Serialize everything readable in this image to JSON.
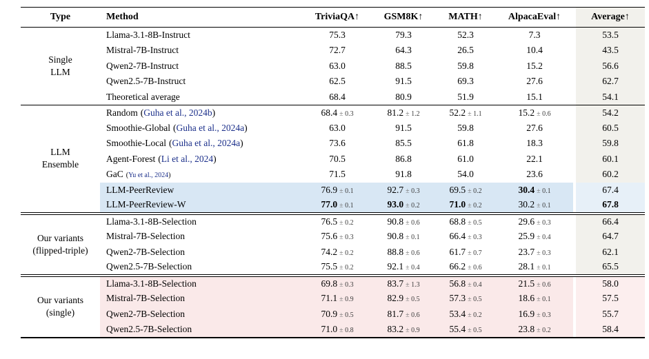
{
  "colors": {
    "citation_blue": "#1b2f8a",
    "avg_col_bg": "#f2f1ec",
    "row_blue": "#d8e7f4",
    "row_blue_avg": "#e7f0f8",
    "row_pink": "#fae9e9",
    "row_pink_avg": "#fceeee",
    "rule_color": "#000000"
  },
  "table": {
    "headers": [
      {
        "label": "Type"
      },
      {
        "label": "Method"
      },
      {
        "label": "TriviaQA↑"
      },
      {
        "label": "GSM8K↑"
      },
      {
        "label": "MATH↑"
      },
      {
        "label": "AlpacaEval↑"
      },
      {
        "label": "Average↑"
      }
    ],
    "groups": [
      {
        "type_lines": [
          "Single",
          "LLM"
        ],
        "separator": "none",
        "rows": [
          {
            "method": {
              "name": "Llama-3.1-8B-Instruct"
            },
            "cells": [
              {
                "v": "75.3"
              },
              {
                "v": "79.3"
              },
              {
                "v": "52.3"
              },
              {
                "v": "7.3"
              }
            ],
            "avg": {
              "v": "53.5"
            }
          },
          {
            "method": {
              "name": "Mistral-7B-Instruct"
            },
            "cells": [
              {
                "v": "72.7"
              },
              {
                "v": "64.3"
              },
              {
                "v": "26.5"
              },
              {
                "v": "10.4"
              }
            ],
            "avg": {
              "v": "43.5"
            }
          },
          {
            "method": {
              "name": "Qwen2-7B-Instruct"
            },
            "cells": [
              {
                "v": "63.0"
              },
              {
                "v": "88.5"
              },
              {
                "v": "59.8"
              },
              {
                "v": "15.2"
              }
            ],
            "avg": {
              "v": "56.6"
            }
          },
          {
            "method": {
              "name": "Qwen2.5-7B-Instruct"
            },
            "cells": [
              {
                "v": "62.5"
              },
              {
                "v": "91.5"
              },
              {
                "v": "69.3"
              },
              {
                "v": "27.6"
              }
            ],
            "avg": {
              "v": "62.7"
            }
          },
          {
            "method": {
              "name": "Theoretical average"
            },
            "cells": [
              {
                "v": "68.4"
              },
              {
                "v": "80.9"
              },
              {
                "v": "51.9"
              },
              {
                "v": "15.1"
              }
            ],
            "avg": {
              "v": "54.1"
            }
          }
        ]
      },
      {
        "type_lines": [
          "LLM",
          "Ensemble"
        ],
        "separator": "single",
        "rows": [
          {
            "method": {
              "name": "Random",
              "cite": "Guha et al., 2024b"
            },
            "cells": [
              {
                "v": "68.4",
                "pm": "0.3"
              },
              {
                "v": "81.2",
                "pm": "1.2"
              },
              {
                "v": "52.2",
                "pm": "1.1"
              },
              {
                "v": "15.2",
                "pm": "0.6"
              }
            ],
            "avg": {
              "v": "54.2"
            }
          },
          {
            "method": {
              "name": "Smoothie-Global",
              "cite": "Guha et al., 2024a"
            },
            "cells": [
              {
                "v": "63.0"
              },
              {
                "v": "91.5"
              },
              {
                "v": "59.8"
              },
              {
                "v": "27.6"
              }
            ],
            "avg": {
              "v": "60.5"
            }
          },
          {
            "method": {
              "name": "Smoothie-Local",
              "cite": "Guha et al., 2024a"
            },
            "cells": [
              {
                "v": "73.6"
              },
              {
                "v": "85.5"
              },
              {
                "v": "61.8"
              },
              {
                "v": "18.3"
              }
            ],
            "avg": {
              "v": "59.8"
            }
          },
          {
            "method": {
              "name": "Agent-Forest",
              "cite": "Li et al., 2024"
            },
            "cells": [
              {
                "v": "70.5"
              },
              {
                "v": "86.8"
              },
              {
                "v": "61.0"
              },
              {
                "v": "22.1"
              }
            ],
            "avg": {
              "v": "60.1"
            }
          },
          {
            "method": {
              "name": "GaC",
              "cite": "Yu et al., 2024",
              "small_cite": true
            },
            "cells": [
              {
                "v": "71.5"
              },
              {
                "v": "91.8"
              },
              {
                "v": "54.0"
              },
              {
                "v": "23.6"
              }
            ],
            "avg": {
              "v": "60.2"
            }
          },
          {
            "method": {
              "name": "LLM-PeerReview"
            },
            "highlight": "blue",
            "cells": [
              {
                "v": "76.9",
                "pm": "0.1"
              },
              {
                "v": "92.7",
                "pm": "0.3"
              },
              {
                "v": "69.5",
                "pm": "0.2"
              },
              {
                "v": "30.4",
                "pm": "0.1",
                "b": true
              }
            ],
            "avg": {
              "v": "67.4"
            }
          },
          {
            "method": {
              "name": "LLM-PeerReview-W"
            },
            "highlight": "blue",
            "cells": [
              {
                "v": "77.0",
                "pm": "0.1",
                "b": true
              },
              {
                "v": "93.0",
                "pm": "0.2",
                "b": true
              },
              {
                "v": "71.0",
                "pm": "0.2",
                "b": true
              },
              {
                "v": "30.2",
                "pm": "0.1"
              }
            ],
            "avg": {
              "v": "67.8",
              "b": true
            }
          }
        ]
      },
      {
        "type_lines": [
          "Our variants",
          "(flipped-triple)"
        ],
        "separator": "double",
        "rows": [
          {
            "method": {
              "name": "Llama-3.1-8B-Selection"
            },
            "cells": [
              {
                "v": "76.5",
                "pm": "0.2"
              },
              {
                "v": "90.8",
                "pm": "0.6"
              },
              {
                "v": "68.8",
                "pm": "0.5"
              },
              {
                "v": "29.6",
                "pm": "0.3"
              }
            ],
            "avg": {
              "v": "66.4"
            }
          },
          {
            "method": {
              "name": "Mistral-7B-Selection"
            },
            "cells": [
              {
                "v": "75.6",
                "pm": "0.3"
              },
              {
                "v": "90.8",
                "pm": "0.1"
              },
              {
                "v": "66.4",
                "pm": "0.3"
              },
              {
                "v": "25.9",
                "pm": "0.4"
              }
            ],
            "avg": {
              "v": "64.7"
            }
          },
          {
            "method": {
              "name": "Qwen2-7B-Selection"
            },
            "cells": [
              {
                "v": "74.2",
                "pm": "0.2"
              },
              {
                "v": "88.8",
                "pm": "0.6"
              },
              {
                "v": "61.7",
                "pm": "0.7"
              },
              {
                "v": "23.7",
                "pm": "0.3"
              }
            ],
            "avg": {
              "v": "62.1"
            }
          },
          {
            "method": {
              "name": "Qwen2.5-7B-Selection"
            },
            "cells": [
              {
                "v": "75.5",
                "pm": "0.2"
              },
              {
                "v": "92.1",
                "pm": "0.4"
              },
              {
                "v": "66.2",
                "pm": "0.6"
              },
              {
                "v": "28.1",
                "pm": "0.1"
              }
            ],
            "avg": {
              "v": "65.5"
            }
          }
        ]
      },
      {
        "type_lines": [
          "Our variants",
          "(single)"
        ],
        "separator": "double",
        "rows": [
          {
            "method": {
              "name": "Llama-3.1-8B-Selection"
            },
            "highlight": "pink",
            "cells": [
              {
                "v": "69.8",
                "pm": "0.3"
              },
              {
                "v": "83.7",
                "pm": "1.3"
              },
              {
                "v": "56.8",
                "pm": "0.4"
              },
              {
                "v": "21.5",
                "pm": "0.6"
              }
            ],
            "avg": {
              "v": "58.0"
            }
          },
          {
            "method": {
              "name": "Mistral-7B-Selection"
            },
            "highlight": "pink",
            "cells": [
              {
                "v": "71.1",
                "pm": "0.9"
              },
              {
                "v": "82.9",
                "pm": "0.5"
              },
              {
                "v": "57.3",
                "pm": "0.5"
              },
              {
                "v": "18.6",
                "pm": "0.1"
              }
            ],
            "avg": {
              "v": "57.5"
            }
          },
          {
            "method": {
              "name": "Qwen2-7B-Selection"
            },
            "highlight": "pink",
            "cells": [
              {
                "v": "70.9",
                "pm": "0.5"
              },
              {
                "v": "81.7",
                "pm": "0.6"
              },
              {
                "v": "53.4",
                "pm": "0.2"
              },
              {
                "v": "16.9",
                "pm": "0.3"
              }
            ],
            "avg": {
              "v": "55.7"
            }
          },
          {
            "method": {
              "name": "Qwen2.5-7B-Selection"
            },
            "highlight": "pink",
            "cells": [
              {
                "v": "71.0",
                "pm": "0.8"
              },
              {
                "v": "83.2",
                "pm": "0.9"
              },
              {
                "v": "55.4",
                "pm": "0.5"
              },
              {
                "v": "23.8",
                "pm": "0.2"
              }
            ],
            "avg": {
              "v": "58.4"
            }
          }
        ]
      }
    ]
  }
}
